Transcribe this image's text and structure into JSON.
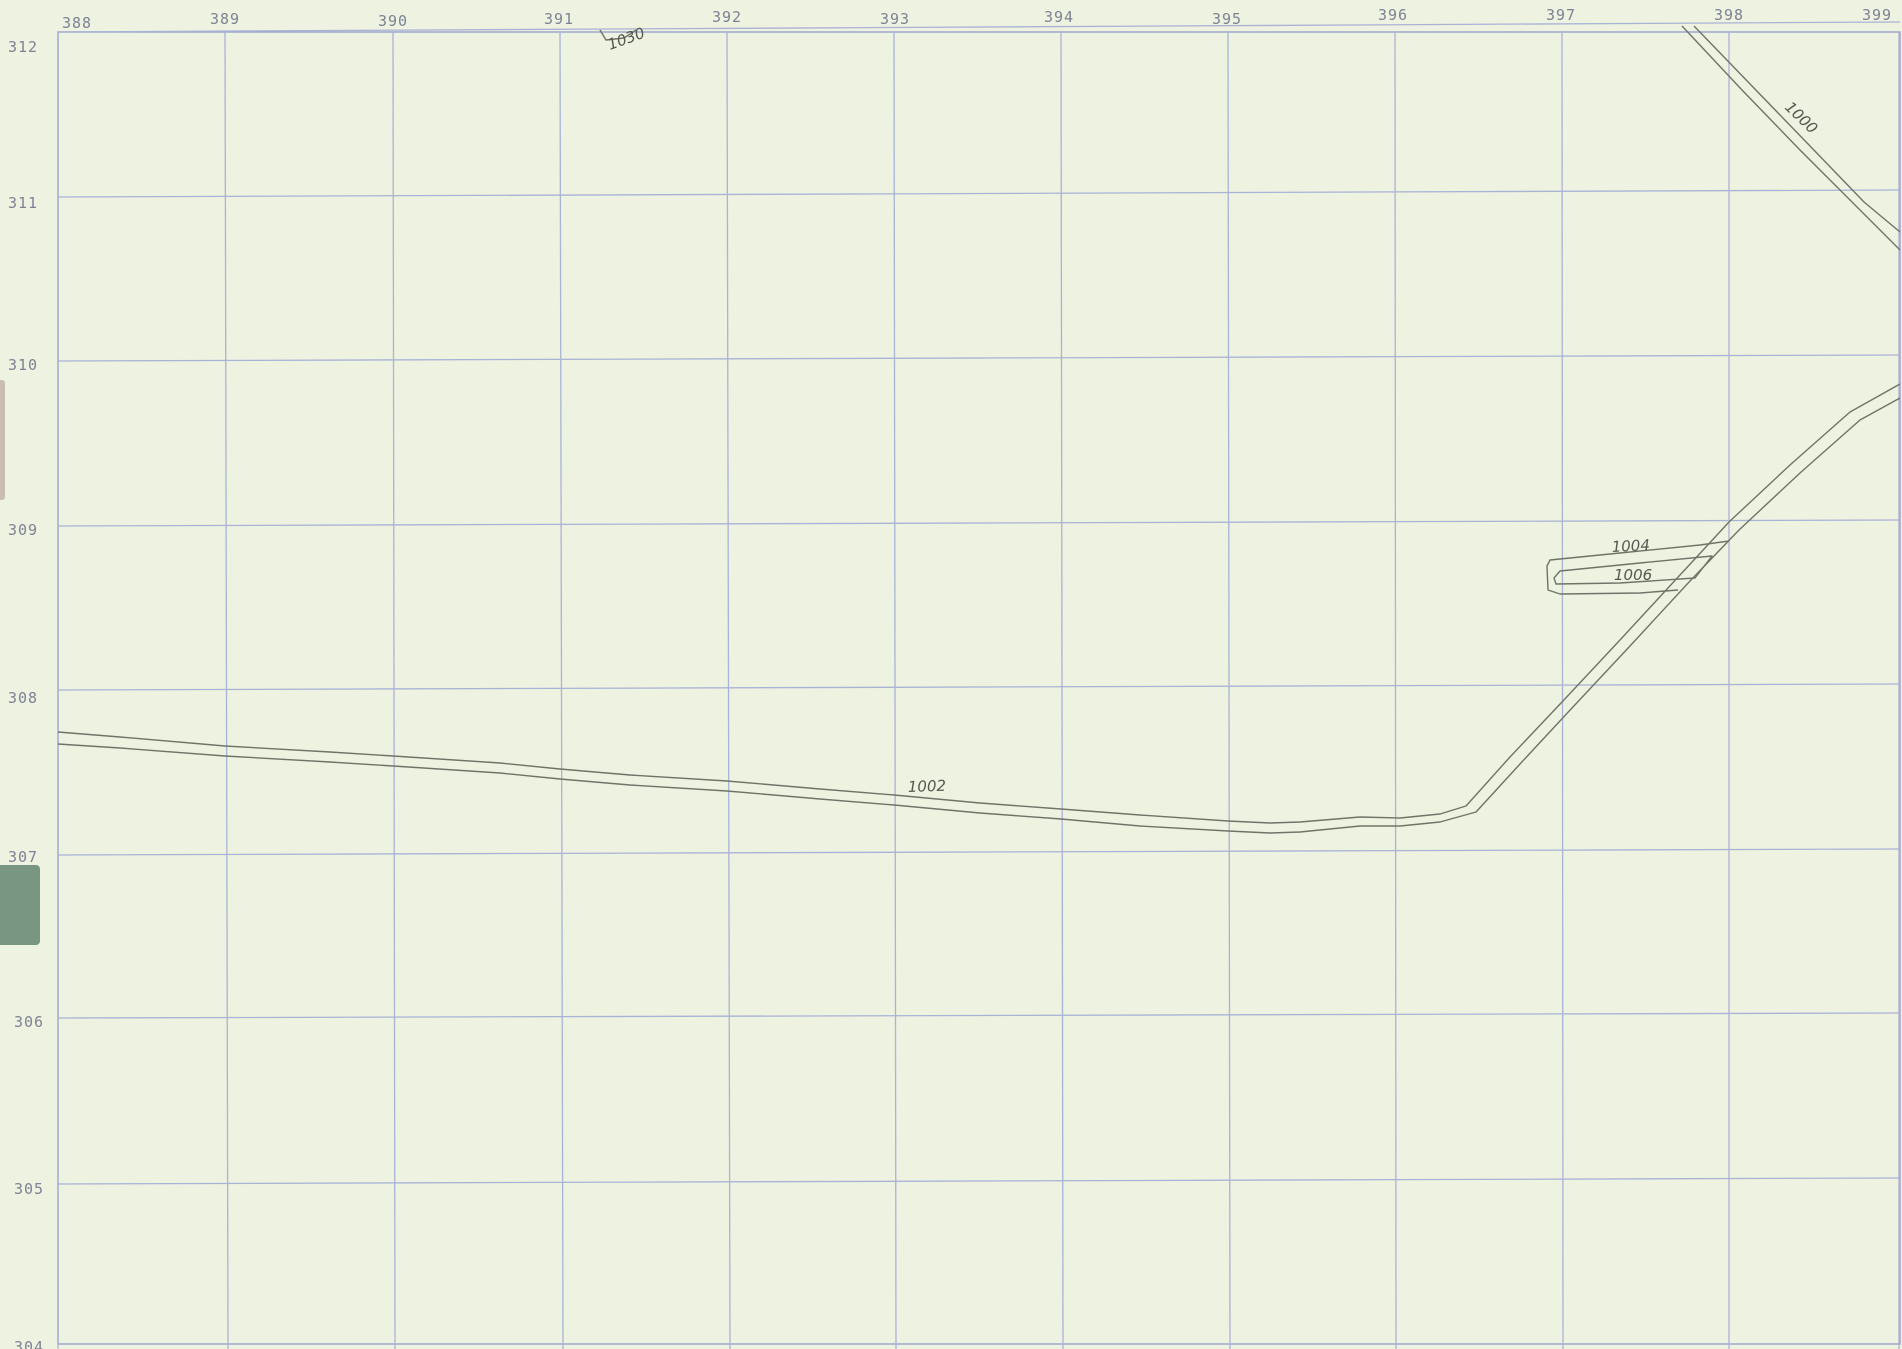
{
  "map": {
    "x_ticks": [
      "388",
      "389",
      "390",
      "391",
      "392",
      "393",
      "394",
      "395",
      "396",
      "397",
      "398",
      "399"
    ],
    "y_ticks": [
      "312",
      "311",
      "310",
      "309",
      "308",
      "307",
      "306",
      "305",
      "304"
    ],
    "contours": [
      {
        "id": "contour-1000",
        "label": "1000"
      },
      {
        "id": "contour-1002",
        "label": "1002"
      },
      {
        "id": "contour-1004",
        "label": "1004"
      },
      {
        "id": "contour-1006",
        "label": "1006"
      },
      {
        "id": "contour-1030",
        "label": "1030"
      }
    ]
  },
  "colors": {
    "paper": "#eef2e0",
    "grid": "#aab2d6",
    "contour_line": "#707468",
    "tab": "#789682"
  }
}
